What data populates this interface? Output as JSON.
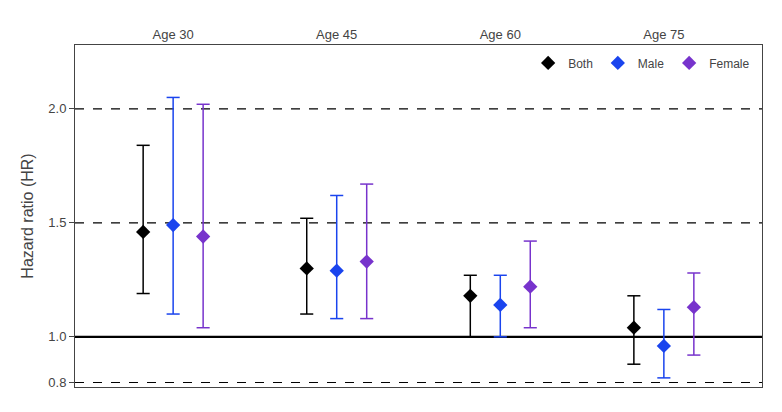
{
  "chart_data": {
    "type": "forest",
    "ylabel": "Hazard ratio (HR)",
    "categories": [
      "Age 30",
      "Age 45",
      "Age 60",
      "Age 75"
    ],
    "series": [
      {
        "name": "Both",
        "color": "#000000",
        "marker": "diamond",
        "values": [
          1.46,
          1.3,
          1.18,
          1.04
        ],
        "low": [
          1.19,
          1.1,
          1.0,
          0.88
        ],
        "high": [
          1.84,
          1.52,
          1.27,
          1.18
        ]
      },
      {
        "name": "Male",
        "color": "#1a44ee",
        "marker": "diamond",
        "values": [
          1.49,
          1.29,
          1.14,
          0.96
        ],
        "low": [
          1.1,
          1.08,
          1.0,
          0.82
        ],
        "high": [
          2.05,
          1.62,
          1.27,
          1.12
        ]
      },
      {
        "name": "Female",
        "color": "#7733cc",
        "marker": "diamond",
        "values": [
          1.44,
          1.33,
          1.22,
          1.13
        ],
        "low": [
          1.04,
          1.08,
          1.04,
          0.92
        ],
        "high": [
          2.02,
          1.67,
          1.42,
          1.28
        ]
      }
    ],
    "reference_lines": [
      {
        "y": 0.8,
        "line_style": "dashed"
      },
      {
        "y": 1.5,
        "line_style": "dashed"
      },
      {
        "y": 2.0,
        "line_style": "dashed"
      },
      {
        "y": 1.0,
        "line_style": "solid"
      }
    ],
    "ylim": [
      0.78,
      2.28
    ],
    "yticks": [
      0.8,
      {
        "value": 1,
        "label": "1.0"
      },
      1.5,
      {
        "value": 2,
        "label": "2.0"
      }
    ],
    "grid": false,
    "legend": "upper right"
  }
}
